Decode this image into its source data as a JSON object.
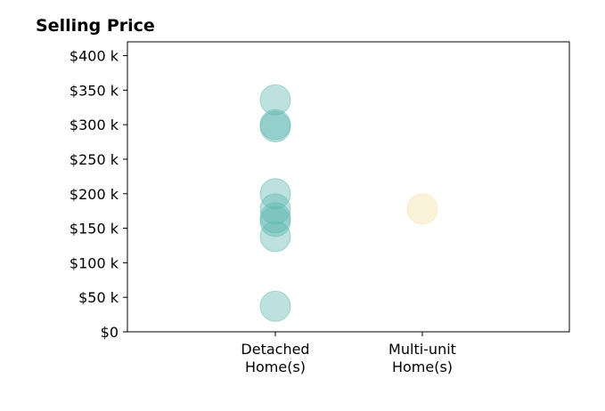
{
  "chart_data": {
    "type": "scatter",
    "title": "Selling Price",
    "xlabel": "",
    "ylabel": "",
    "categories": [
      "Detached\nHome(s)",
      "Multi-unit\nHome(s)"
    ],
    "ylim": [
      0,
      420000
    ],
    "yticks": [
      0,
      50000,
      100000,
      150000,
      200000,
      250000,
      300000,
      350000,
      400000
    ],
    "ytick_labels": [
      "$0",
      "$50 k",
      "$100 k",
      "$150 k",
      "$200 k",
      "$250 k",
      "$300 k",
      "$350 k",
      "$400 k"
    ],
    "grid": false,
    "series": [
      {
        "category_index": 0,
        "color": "#5fb8b0",
        "values": [
          37000,
          138000,
          160000,
          165000,
          178000,
          200000,
          297000,
          300000,
          336000
        ]
      },
      {
        "category_index": 1,
        "color": "#f5dfa8",
        "values": [
          178000
        ]
      }
    ]
  }
}
